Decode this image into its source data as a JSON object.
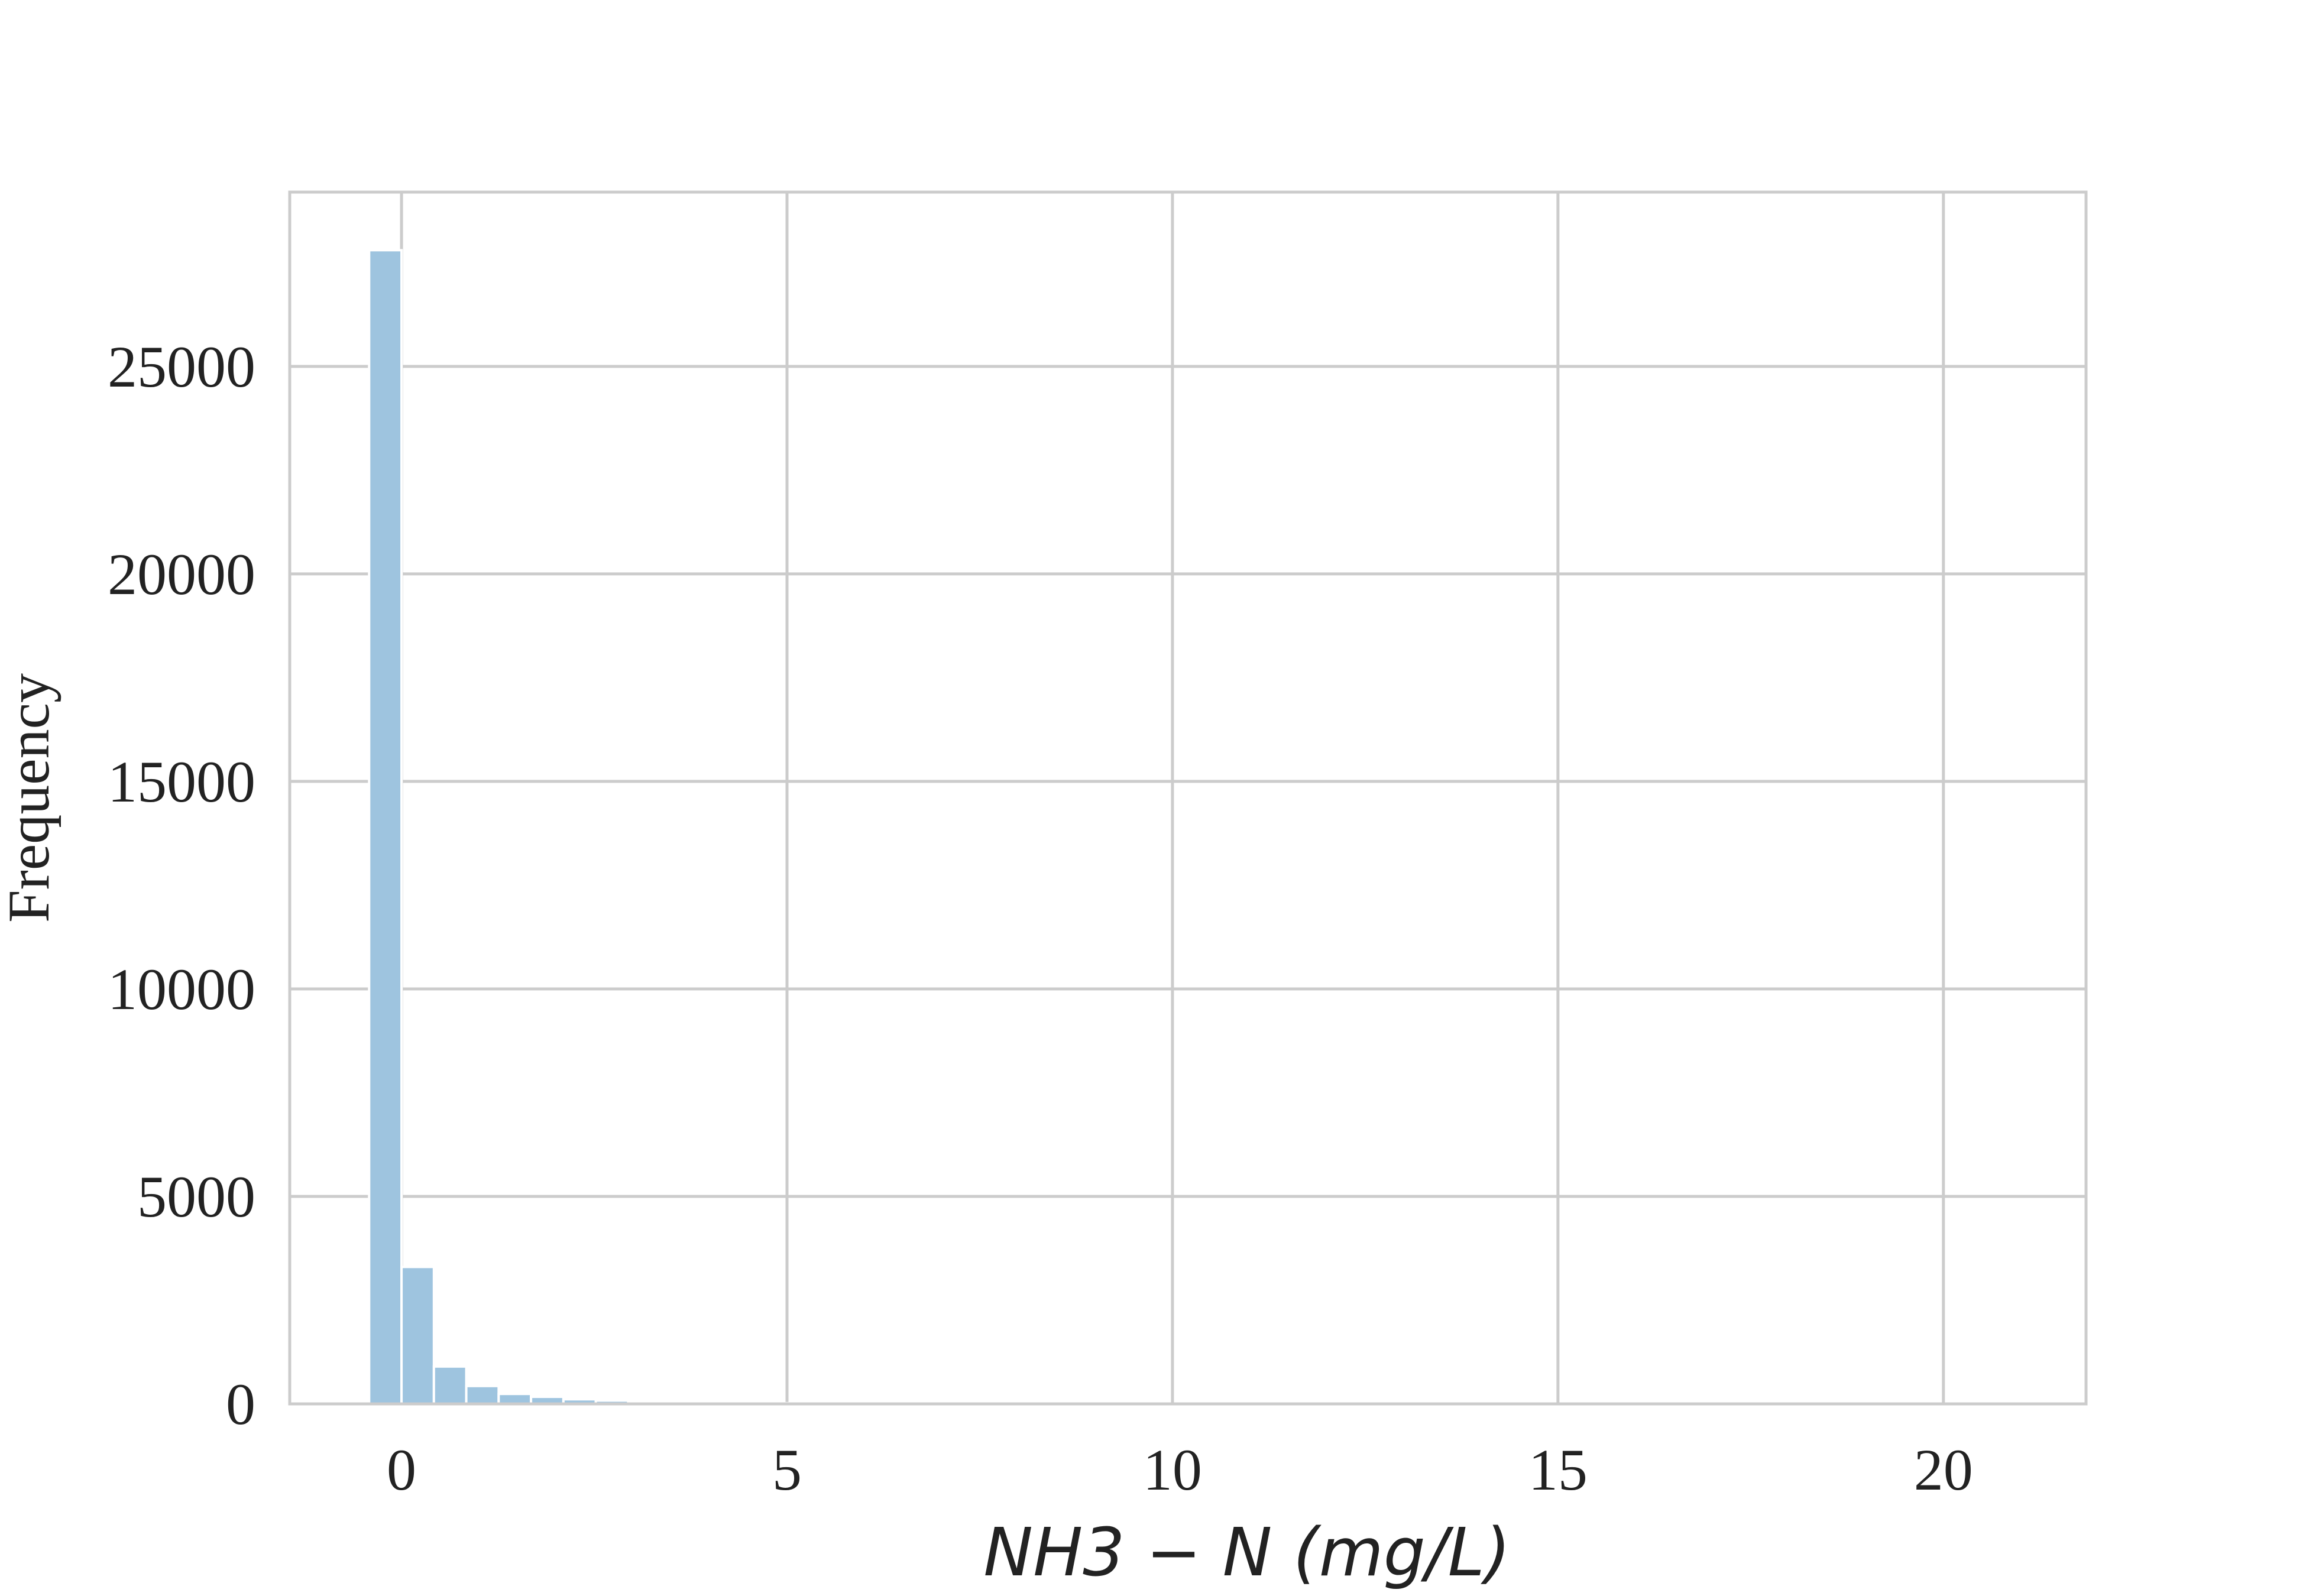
{
  "chart_data": {
    "type": "bar",
    "subtype": "histogram",
    "title": "",
    "xlabel": "NH3 − N (mg/L)",
    "ylabel": "Frequency",
    "xlim": [
      -1.45,
      21.85
    ],
    "ylim": [
      0,
      29200
    ],
    "xticks": [
      0,
      5,
      10,
      15,
      20
    ],
    "xtick_labels": [
      "0",
      "5",
      "10",
      "15",
      "20"
    ],
    "yticks": [
      0,
      5000,
      10000,
      15000,
      20000,
      25000
    ],
    "ytick_labels": [
      "0",
      "5000",
      "10000",
      "15000",
      "20000",
      "25000"
    ],
    "grid": true,
    "bar_color": "#9ec4df",
    "bin_edges": [
      -0.42,
      0.0,
      0.42,
      0.84,
      1.26,
      1.68,
      2.1,
      2.52,
      2.94,
      3.36,
      3.78,
      4.2,
      4.62,
      5.04,
      5.46,
      5.88,
      6.3,
      6.72,
      7.14,
      7.56,
      7.98
    ],
    "counts": [
      27800,
      3300,
      900,
      430,
      240,
      170,
      110,
      80,
      60,
      50,
      35,
      25,
      18,
      14,
      11,
      9,
      7,
      6,
      5,
      4
    ]
  }
}
